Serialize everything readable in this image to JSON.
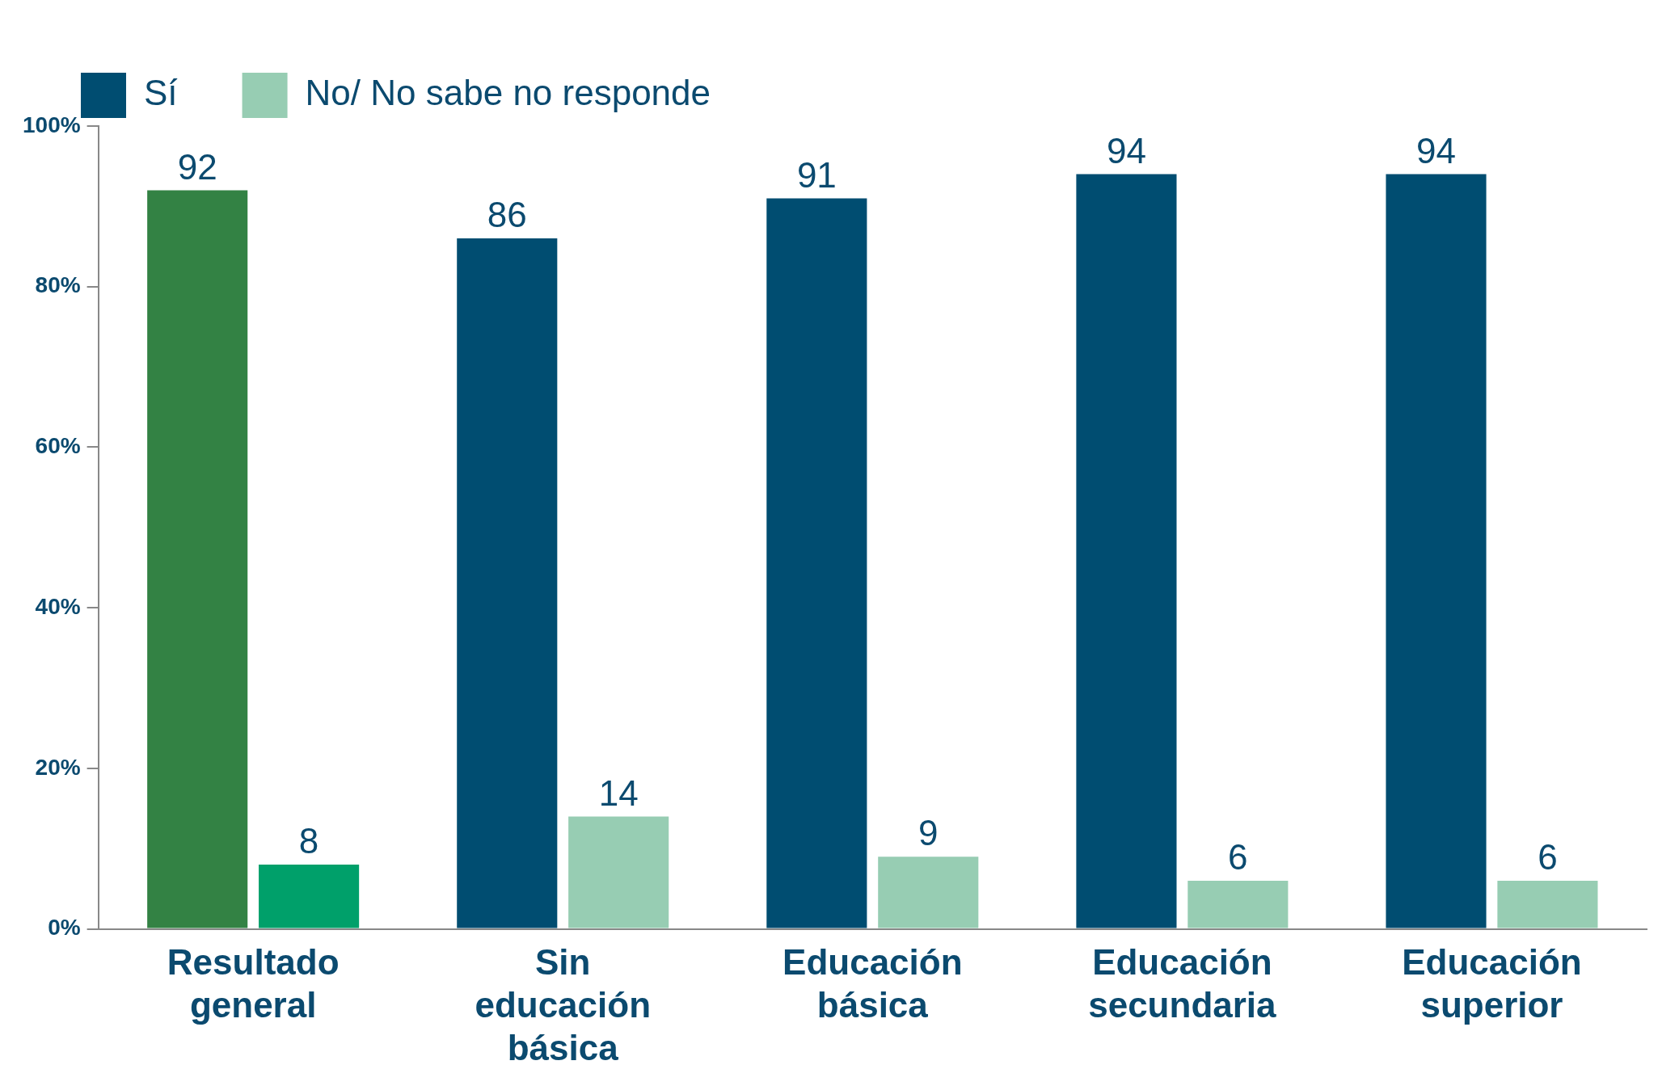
{
  "chart_data": {
    "type": "bar",
    "categories": [
      "Resultado general",
      "Sin educación básica",
      "Educación básica",
      "Educación secundaria",
      "Educación superior"
    ],
    "series": [
      {
        "name": "Sí",
        "color": "#004d71",
        "colors": [
          "#338244",
          "#004d71",
          "#004d71",
          "#004d71",
          "#004d71"
        ],
        "values": [
          92,
          86,
          91,
          94,
          94
        ]
      },
      {
        "name": "No/ No sabe no responde",
        "color": "#97cdb3",
        "colors": [
          "#00a06a",
          "#97cdb3",
          "#97cdb3",
          "#97cdb3",
          "#97cdb3"
        ],
        "values": [
          8,
          14,
          9,
          6,
          6
        ]
      }
    ],
    "ylim": [
      0,
      100
    ],
    "yticks": [
      {
        "value": 0,
        "label": "0%"
      },
      {
        "value": 20,
        "label": "20%"
      },
      {
        "value": 40,
        "label": "40%"
      },
      {
        "value": 60,
        "label": "60%"
      },
      {
        "value": 80,
        "label": "80%"
      },
      {
        "value": 100,
        "label": "100%"
      }
    ],
    "grid": false,
    "legend": "top left",
    "data_labels": true
  }
}
